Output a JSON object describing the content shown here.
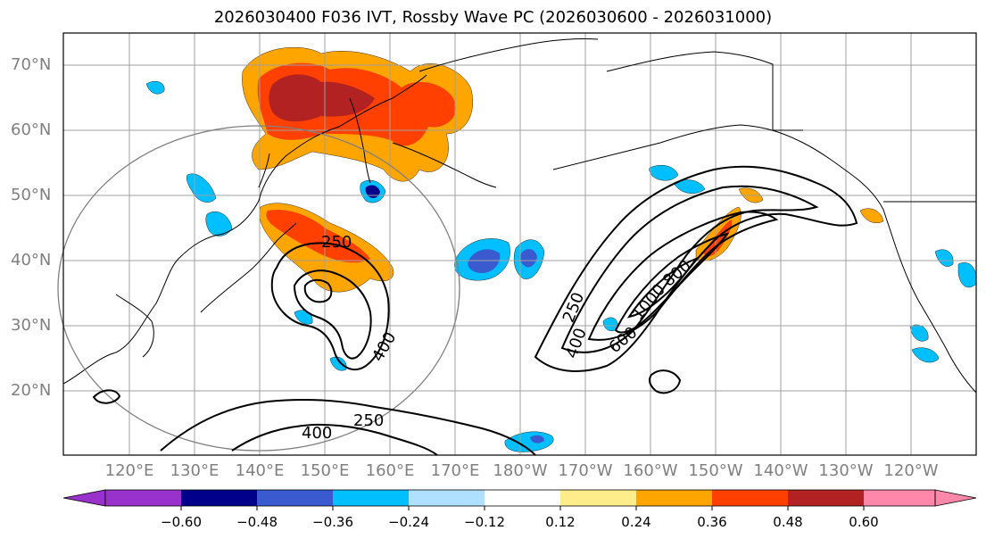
{
  "title": "2026030400 F036 IVT, Rossby Wave PC (2026030600 - 2026031000)",
  "lat_labels": [
    "70°N",
    "60°N",
    "50°N",
    "40°N",
    "30°N",
    "20°N"
  ],
  "lon_labels": [
    "120°E",
    "130°E",
    "140°E",
    "150°E",
    "160°E",
    "170°E",
    "180°W",
    "170°W",
    "160°W",
    "150°W",
    "140°W",
    "130°W",
    "120°W"
  ],
  "contour_labels": [
    "250",
    "250",
    "250",
    "400",
    "400",
    "400",
    "600",
    "800",
    "1000"
  ],
  "colorbar": {
    "ticks": [
      "−0.60",
      "−0.48",
      "−0.36",
      "−0.24",
      "−0.12",
      "0.12",
      "0.24",
      "0.36",
      "0.48",
      "0.60"
    ],
    "colors": [
      "#9932cc",
      "#00008b",
      "#3a5bd0",
      "#00bfff",
      "#b0e0ff",
      "#ffffff",
      "#ffec8b",
      "#ffa500",
      "#ff4000",
      "#b22222",
      "#ff88aa"
    ]
  },
  "colors": {
    "land_line": "#000000",
    "grid": "#a0a0a0",
    "circle": "#808080",
    "contour": "#000000"
  }
}
